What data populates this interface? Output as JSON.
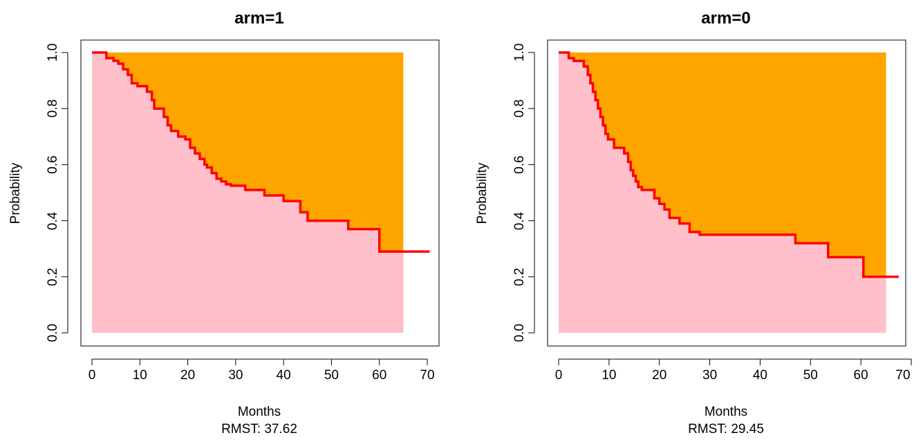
{
  "colors": {
    "survival_curve": "#ff0000",
    "area_under_curve": "#ffc0cb",
    "area_above_curve": "#ffa500",
    "axis": "#000000"
  },
  "chart_data": [
    {
      "type": "area",
      "title": "arm=1",
      "xlabel": "Months",
      "ylabel": "Probability",
      "rmst_label": "RMST: 37.62",
      "xlim": [
        0,
        70
      ],
      "ylim": [
        0,
        1
      ],
      "xticks": [
        "0",
        "10",
        "20",
        "30",
        "40",
        "50",
        "60",
        "70"
      ],
      "yticks": [
        "0.0",
        "0.2",
        "0.4",
        "0.6",
        "0.8",
        "1.0"
      ],
      "tau": 65,
      "series": [
        {
          "x": [
            0,
            3.0,
            4.5,
            5.5,
            6.5,
            7.5,
            8.3,
            9.5,
            11.5,
            12.5,
            13.0,
            15.0,
            15.8,
            16.5,
            18.0,
            19.5,
            20.5,
            21.5,
            22.5,
            23.5,
            24.0,
            25.0,
            26.0,
            27.0,
            28.0,
            29.0,
            32.0,
            36.0,
            40.0,
            43.5,
            45.0,
            53.5,
            60.0,
            70.5
          ],
          "y": [
            1.0,
            0.98,
            0.97,
            0.96,
            0.94,
            0.92,
            0.89,
            0.88,
            0.86,
            0.83,
            0.8,
            0.77,
            0.74,
            0.72,
            0.7,
            0.69,
            0.66,
            0.64,
            0.62,
            0.6,
            0.59,
            0.57,
            0.55,
            0.54,
            0.53,
            0.525,
            0.51,
            0.49,
            0.47,
            0.43,
            0.4,
            0.37,
            0.29,
            0.29
          ]
        }
      ]
    },
    {
      "type": "area",
      "title": "arm=0",
      "xlabel": "Months",
      "ylabel": "Probability",
      "rmst_label": "RMST: 29.45",
      "xlim": [
        0,
        70
      ],
      "ylim": [
        0,
        1
      ],
      "xticks": [
        "0",
        "10",
        "20",
        "30",
        "40",
        "50",
        "60",
        "70"
      ],
      "yticks": [
        "0.0",
        "0.2",
        "0.4",
        "0.6",
        "0.8",
        "1.0"
      ],
      "tau": 65,
      "series": [
        {
          "x": [
            0,
            2.0,
            3.0,
            5.0,
            5.8,
            6.3,
            6.8,
            7.3,
            7.8,
            8.3,
            8.8,
            9.3,
            9.8,
            11.0,
            13.0,
            13.8,
            14.3,
            14.8,
            15.3,
            15.8,
            16.5,
            19.0,
            20.0,
            21.0,
            22.0,
            24.0,
            26.0,
            28.0,
            35.0,
            47.0,
            53.5,
            60.5,
            67.5
          ],
          "y": [
            1.0,
            0.98,
            0.97,
            0.95,
            0.92,
            0.89,
            0.86,
            0.83,
            0.8,
            0.77,
            0.74,
            0.71,
            0.69,
            0.66,
            0.64,
            0.61,
            0.58,
            0.56,
            0.54,
            0.52,
            0.51,
            0.48,
            0.46,
            0.44,
            0.41,
            0.39,
            0.36,
            0.35,
            0.35,
            0.32,
            0.27,
            0.2,
            0.2
          ]
        }
      ]
    }
  ]
}
